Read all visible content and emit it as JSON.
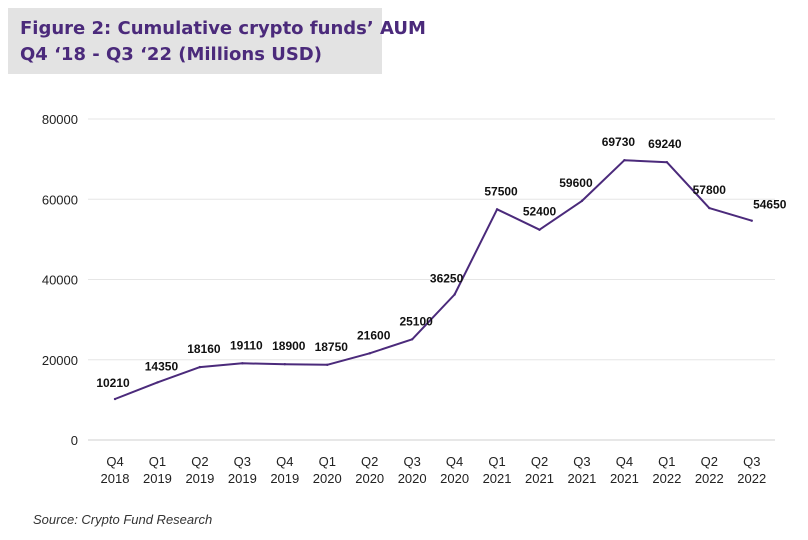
{
  "title": {
    "line1": "Figure 2: Cumulative crypto funds’ AUM",
    "line2": "Q4 ‘18 - Q3 ‘22 (Millions USD)"
  },
  "source": "Source: Crypto Fund Research",
  "colors": {
    "line": "#4b2a7b",
    "title_text": "#4b2a7b",
    "title_bg": "#e3e3e3",
    "grid": "#e6e6e6"
  },
  "chart_data": {
    "type": "line",
    "categories": [
      [
        "Q4",
        "2018"
      ],
      [
        "Q1",
        "2019"
      ],
      [
        "Q2",
        "2019"
      ],
      [
        "Q3",
        "2019"
      ],
      [
        "Q4",
        "2019"
      ],
      [
        "Q1",
        "2020"
      ],
      [
        "Q2",
        "2020"
      ],
      [
        "Q3",
        "2020"
      ],
      [
        "Q4",
        "2020"
      ],
      [
        "Q1",
        "2021"
      ],
      [
        "Q2",
        "2021"
      ],
      [
        "Q3",
        "2021"
      ],
      [
        "Q4",
        "2021"
      ],
      [
        "Q1",
        "2022"
      ],
      [
        "Q2",
        "2022"
      ],
      [
        "Q3",
        "2022"
      ]
    ],
    "series": [
      {
        "values": [
          10210,
          14350,
          18160,
          19110,
          18900,
          18750,
          21600,
          25100,
          36250,
          57500,
          52400,
          59600,
          69730,
          69240,
          57800,
          54650
        ]
      }
    ],
    "data_labels": [
      "10210",
      "14350",
      "18160",
      "19110",
      "18900",
      "18750",
      "21600",
      "25100",
      "36250",
      "57500",
      "52400",
      "59600",
      "69730",
      "69240",
      "57800",
      "54650"
    ],
    "yticks": [
      0,
      20000,
      40000,
      60000,
      80000
    ],
    "ylim": [
      0,
      80000
    ],
    "grid": true,
    "legend": "none"
  }
}
